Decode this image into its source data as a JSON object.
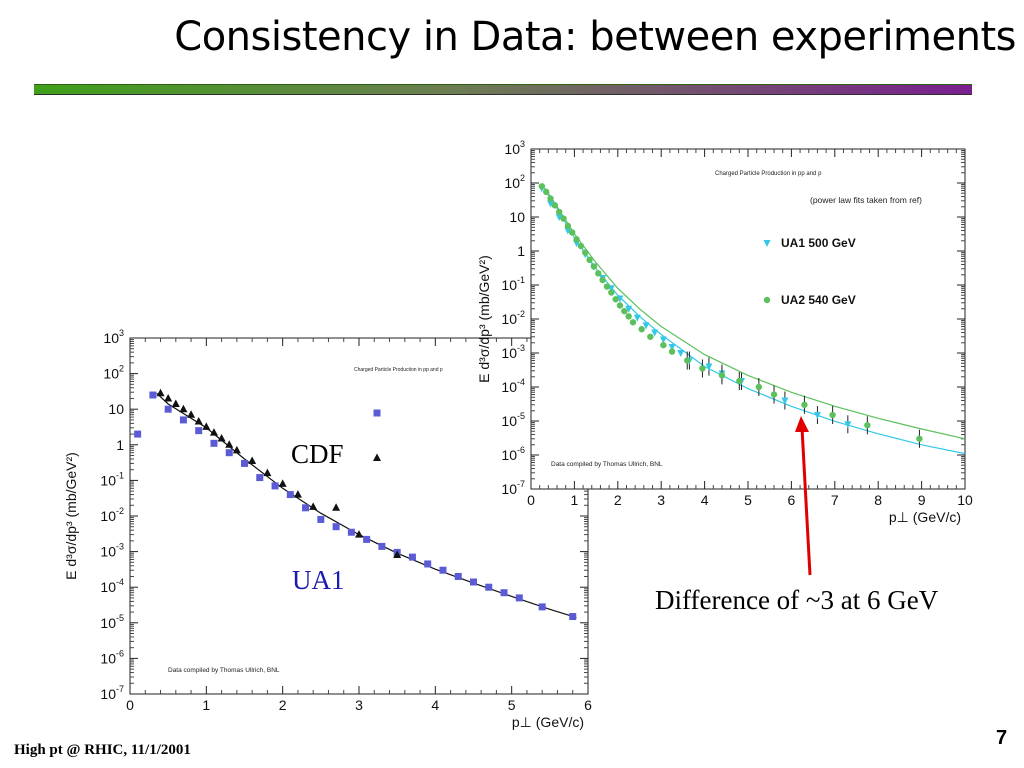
{
  "slide": {
    "title": "Consistency in Data: between experiments",
    "footer": "High pt @ RHIC, 11/1/2001",
    "page_number": "7",
    "annotations": {
      "cdf": "CDF",
      "ua1": "UA1",
      "difference": "Difference of ~3 at 6 GeV"
    },
    "colors": {
      "title_bar_start": "#3fa01a",
      "title_bar_end": "#7a1f8f",
      "ua1_text": "#1a1ab4",
      "arrow": "#e00000"
    }
  },
  "chart_data": [
    {
      "type": "scatter",
      "title": "Charged Particle Production in pp and p",
      "xlabel": "p⊥  (GeV/c)",
      "ylabel": "E d³σ/dp³ (mb/GeV²)",
      "xlim": [
        0,
        6
      ],
      "ylim": [
        1e-07,
        1000
      ],
      "yscale": "log",
      "x_ticks": [
        0,
        1,
        2,
        3,
        4,
        5,
        6
      ],
      "y_ticks": [
        "10-7",
        "10-6",
        "10-5",
        "10-4",
        "10-3",
        "10-2",
        "10-1",
        "1",
        "10",
        "102",
        "103"
      ],
      "credit": "Data compiled by Thomas Ullrich, BNL",
      "legend_position": "top-right",
      "fit_curve": {
        "x": [
          0.35,
          0.5,
          1.0,
          1.5,
          2.0,
          2.5,
          3.0,
          3.5,
          4.0,
          4.5,
          5.0,
          5.5,
          5.85
        ],
        "y": [
          28,
          14,
          3,
          0.4,
          0.06,
          0.012,
          0.003,
          0.0009,
          0.00032,
          0.00013,
          5.5e-05,
          2.4e-05,
          1.4e-05
        ]
      },
      "series": [
        {
          "marker": "square",
          "color": "#5b5bd6",
          "x": [
            0.1,
            0.3,
            0.5,
            0.7,
            0.9,
            1.1,
            1.3,
            1.5,
            1.7,
            1.9,
            2.1,
            2.3,
            2.5,
            2.7,
            2.9,
            3.1,
            3.3,
            3.5,
            3.7,
            3.9,
            4.1,
            4.3,
            4.5,
            4.7,
            4.9,
            5.1,
            5.4,
            5.8
          ],
          "y": [
            2,
            25,
            10,
            5,
            2.5,
            1.1,
            0.6,
            0.3,
            0.12,
            0.07,
            0.04,
            0.017,
            0.008,
            0.005,
            0.0035,
            0.0022,
            0.0014,
            0.00095,
            0.0007,
            0.00045,
            0.0003,
            0.0002,
            0.00014,
            0.0001,
            7e-05,
            5e-05,
            2.8e-05,
            1.5e-05
          ]
        },
        {
          "marker": "triangle",
          "color": "#111111",
          "x": [
            0.4,
            0.5,
            0.6,
            0.7,
            0.8,
            0.9,
            1.0,
            1.1,
            1.2,
            1.3,
            1.4,
            1.6,
            1.8,
            2.0,
            2.2,
            2.4,
            2.7,
            3.0,
            3.5
          ],
          "y": [
            28,
            20,
            14,
            10,
            7,
            4.5,
            3.2,
            2.2,
            1.5,
            1,
            0.7,
            0.35,
            0.16,
            0.08,
            0.04,
            0.018,
            0.017,
            0.003,
            0.0008
          ]
        }
      ]
    },
    {
      "type": "scatter",
      "title": "Charged Particle Production in pp and p",
      "note": "(power law fits taken from ref)",
      "xlabel": "p⊥  (GeV/c)",
      "ylabel": "E d³σ/dp³ (mb/GeV²)",
      "xlim": [
        0,
        10
      ],
      "ylim": [
        1e-07,
        1000
      ],
      "yscale": "log",
      "x_ticks": [
        0,
        1,
        2,
        3,
        4,
        5,
        6,
        7,
        8,
        9,
        10
      ],
      "y_ticks": [
        "10-7",
        "10-6",
        "10-5",
        "10-4",
        "10-3",
        "10-2",
        "10-1",
        "1",
        "10",
        "102",
        "103"
      ],
      "credit": "Data compiled by Thomas Ullrich, BNL",
      "legend_position": "top-right",
      "series": [
        {
          "name": "UA1  500 GeV",
          "marker": "triangle-down",
          "color": "#33c8e8",
          "x": [
            0.25,
            0.45,
            0.65,
            0.85,
            1.05,
            1.25,
            1.45,
            1.65,
            1.85,
            2.05,
            2.25,
            2.45,
            2.65,
            2.85,
            3.05,
            3.25,
            3.45,
            3.65,
            4.1,
            4.4,
            4.85,
            5.85,
            6.6,
            7.3
          ],
          "y": [
            70,
            25,
            10,
            4,
            1.7,
            0.8,
            0.35,
            0.16,
            0.08,
            0.04,
            0.02,
            0.011,
            0.0065,
            0.004,
            0.0025,
            0.0015,
            0.001,
            0.0006,
            0.0004,
            0.00025,
            0.00015,
            4e-05,
            1.5e-05,
            8e-06
          ],
          "fit": {
            "x": [
              0.3,
              0.5,
              1,
              1.5,
              2,
              2.5,
              3,
              4,
              5,
              6,
              7,
              8,
              9,
              10
            ],
            "y": [
              65,
              30,
              2.5,
              0.3,
              0.05,
              0.012,
              0.0035,
              0.0004,
              9e-05,
              2.7e-05,
              9.8e-06,
              4.2e-06,
              2e-06,
              1.1e-06
            ]
          }
        },
        {
          "name": "UA2  540 GeV",
          "marker": "circle",
          "color": "#5cc05c",
          "x": [
            0.25,
            0.35,
            0.45,
            0.55,
            0.65,
            0.75,
            0.85,
            0.95,
            1.05,
            1.15,
            1.25,
            1.35,
            1.45,
            1.55,
            1.65,
            1.75,
            1.85,
            1.95,
            2.05,
            2.15,
            2.25,
            2.35,
            2.55,
            2.75,
            3.05,
            3.25,
            3.6,
            3.95,
            4.4,
            4.8,
            5.25,
            5.6,
            6.3,
            6.95,
            7.75,
            8.95
          ],
          "y": [
            80,
            55,
            35,
            22,
            14,
            9,
            5.5,
            3.5,
            2.2,
            1.4,
            0.9,
            0.55,
            0.35,
            0.22,
            0.14,
            0.09,
            0.06,
            0.038,
            0.025,
            0.017,
            0.012,
            0.008,
            0.005,
            0.003,
            0.0017,
            0.0011,
            0.0006,
            0.00035,
            0.00022,
            0.00015,
            0.0001,
            6e-05,
            3e-05,
            1.5e-05,
            7.5e-06,
            3e-06
          ],
          "fit": {
            "x": [
              0.3,
              0.5,
              1,
              1.5,
              2,
              2.5,
              3,
              4,
              5,
              6,
              7,
              8,
              9,
              10
            ],
            "y": [
              75,
              32,
              3.2,
              0.45,
              0.08,
              0.02,
              0.006,
              0.0009,
              0.00022,
              7e-05,
              2.7e-05,
              1.2e-05,
              5.8e-06,
              3e-06
            ]
          }
        }
      ]
    }
  ]
}
